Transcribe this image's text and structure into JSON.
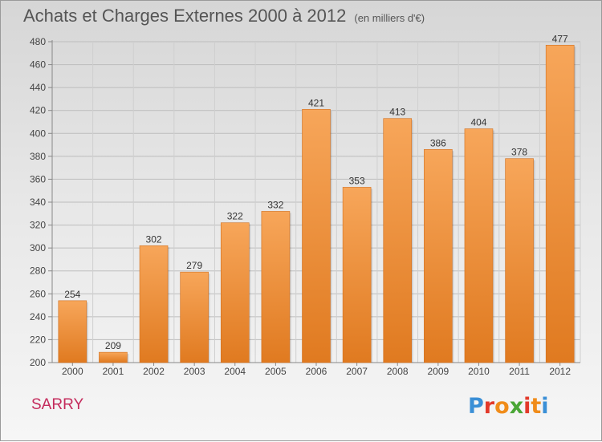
{
  "title": "Achats et Charges Externes 2000 à 2012",
  "unit_note": "(en milliers d'€)",
  "commune": "SARRY",
  "logo": {
    "letters": [
      "P",
      "r",
      "o",
      "x",
      "i",
      "t",
      "i"
    ],
    "colors": [
      "#3a8fd6",
      "#e2392a",
      "#f08c1a",
      "#4aa636",
      "#e2392a",
      "#f08c1a",
      "#3a8fd6"
    ]
  },
  "colors": {
    "bar_light": "#f7a65a",
    "bar_dark": "#e07a20",
    "title": "#555555",
    "commune": "#c42b5c"
  },
  "chart_data": {
    "type": "bar",
    "categories": [
      "2000",
      "2001",
      "2002",
      "2003",
      "2004",
      "2005",
      "2006",
      "2007",
      "2008",
      "2009",
      "2010",
      "2011",
      "2012"
    ],
    "values": [
      254,
      209,
      302,
      279,
      322,
      332,
      421,
      353,
      413,
      386,
      404,
      378,
      477
    ],
    "ylim": [
      200,
      480
    ],
    "yticks": [
      200,
      220,
      240,
      260,
      280,
      300,
      320,
      340,
      360,
      380,
      400,
      420,
      440,
      460,
      480
    ],
    "grid": true,
    "data_labels": true
  }
}
